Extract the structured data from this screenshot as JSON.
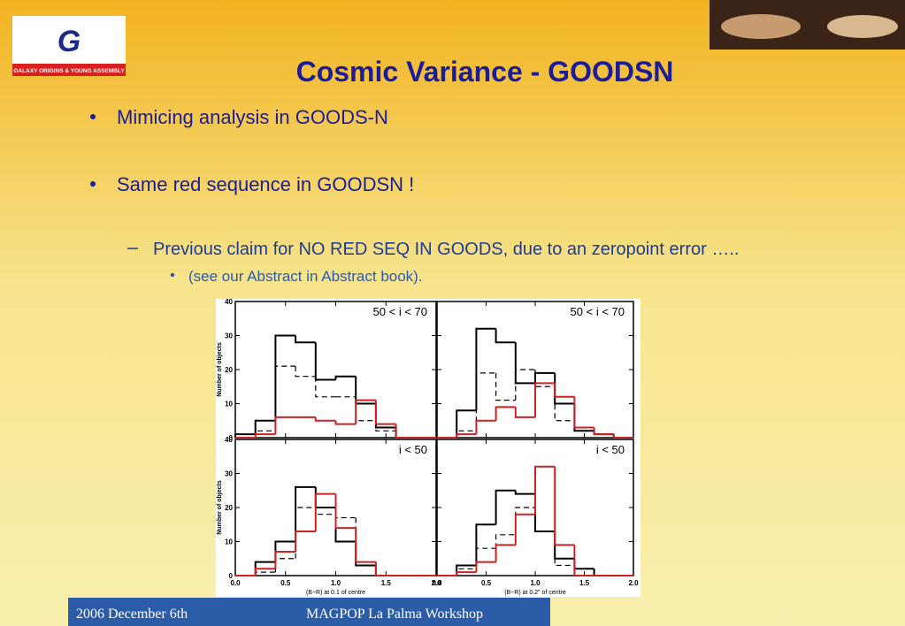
{
  "header": {
    "title": "Cosmic Variance - GOODSN",
    "logo_caption": "GALAXY ORIGINS & YOUNG ASSEMBLY"
  },
  "bullets": [
    "Mimicing analysis in GOODS-N",
    "Same red sequence in GOODSN !"
  ],
  "sub_bullet": "Previous claim for NO RED SEQ IN GOODS, due to an zeropoint error …..",
  "sub_sub_bullet": "(see our Abstract in Abstract book).",
  "footer": {
    "date": "2006 December 6th",
    "event": "MAGPOP La Palma Workshop"
  },
  "chart_data": {
    "type": "histogram",
    "bins": [
      0,
      0.2,
      0.4,
      0.6,
      0.8,
      1.0,
      1.2,
      1.4,
      1.6,
      1.8,
      2.0
    ],
    "xlim": [
      0,
      2
    ],
    "ylim": [
      0,
      40
    ],
    "xticks": [
      {
        "value": 0,
        "label": "0.0"
      },
      {
        "value": 0.5,
        "label": "0.5"
      },
      {
        "value": 1,
        "label": "1.0"
      },
      {
        "value": 1.5,
        "label": "1.5"
      },
      {
        "value": 2,
        "label": "2.0"
      }
    ],
    "yticks": [
      0,
      10,
      20,
      30,
      40
    ],
    "ylabel": "Number of objects",
    "panels": [
      {
        "label": "50 < i < 70",
        "series": [
          {
            "color": "#000000",
            "style": "solid",
            "values": [
              1,
              5,
              30,
              28,
              17,
              18,
              10,
              3,
              0,
              0
            ]
          },
          {
            "color": "#000000",
            "style": "dashed",
            "values": [
              0,
              2,
              21,
              18,
              12,
              12,
              5,
              2,
              0,
              0
            ]
          },
          {
            "color": "#cc2222",
            "style": "solid",
            "values": [
              0,
              1,
              6,
              6,
              5,
              4,
              11,
              4,
              0,
              0
            ]
          }
        ]
      },
      {
        "label": "50 < i < 70",
        "series": [
          {
            "color": "#000000",
            "style": "solid",
            "values": [
              0,
              8,
              32,
              28,
              16,
              19,
              10,
              2,
              1,
              0
            ]
          },
          {
            "color": "#000000",
            "style": "dashed",
            "values": [
              0,
              2,
              19,
              11,
              20,
              15,
              5,
              2,
              1,
              0
            ]
          },
          {
            "color": "#cc2222",
            "style": "solid",
            "values": [
              0,
              1,
              5,
              9,
              6,
              16,
              12,
              3,
              1,
              0
            ]
          }
        ]
      },
      {
        "label": "i < 50",
        "xlabel": "(B−R) at 0.1 of centre",
        "series": [
          {
            "color": "#000000",
            "style": "solid",
            "values": [
              0,
              4,
              10,
              26,
              20,
              10,
              3,
              0,
              0,
              0
            ]
          },
          {
            "color": "#000000",
            "style": "dashed",
            "values": [
              0,
              1,
              5,
              20,
              18,
              17,
              4,
              0,
              0,
              0
            ]
          },
          {
            "color": "#cc2222",
            "style": "solid",
            "values": [
              0,
              2,
              7,
              13,
              24,
              14,
              4,
              0,
              0,
              0
            ]
          }
        ]
      },
      {
        "label": "i < 50",
        "xlabel": "(B−R) at 0.2″ of centre",
        "series": [
          {
            "color": "#000000",
            "style": "solid",
            "values": [
              0,
              3,
              15,
              25,
              24,
              13,
              5,
              2,
              0,
              0
            ]
          },
          {
            "color": "#000000",
            "style": "dashed",
            "values": [
              0,
              2,
              8,
              12,
              20,
              13,
              3,
              0,
              0,
              0
            ]
          },
          {
            "color": "#cc2222",
            "style": "solid",
            "values": [
              0,
              1,
              4,
              9,
              18,
              32,
              9,
              0,
              0,
              0
            ]
          }
        ]
      }
    ]
  }
}
